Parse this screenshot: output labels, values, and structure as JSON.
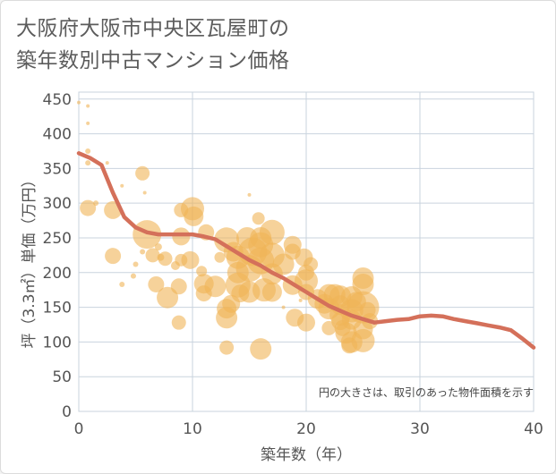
{
  "title_line1": "大阪府大阪市中央区瓦屋町の",
  "title_line2": "築年数別中古マンション価格",
  "chart_data": {
    "type": "scatter",
    "xlabel": "築年数（年）",
    "ylabel": "坪（3.3㎡）単価（万円）",
    "note": "円の大きさは、取引のあった物件面積を示す",
    "xlim": [
      0,
      40
    ],
    "ylim": [
      0,
      460
    ],
    "xticks": [
      0,
      10,
      20,
      30,
      40
    ],
    "yticks": [
      0,
      50,
      100,
      150,
      200,
      250,
      300,
      350,
      400,
      450
    ],
    "grid": true,
    "colors": {
      "bubble": "#f0b456",
      "line": "#d4705a"
    },
    "trend_line": {
      "x": [
        0,
        1,
        2,
        3,
        4,
        5,
        6,
        7,
        8,
        9,
        10,
        11,
        12,
        13,
        14,
        15,
        16,
        17,
        18,
        19,
        20,
        21,
        22,
        23,
        24,
        25,
        26,
        27,
        28,
        29,
        30,
        31,
        32,
        33,
        34,
        35,
        36,
        37,
        38,
        39,
        40
      ],
      "y": [
        372,
        365,
        355,
        315,
        280,
        265,
        258,
        255,
        255,
        255,
        255,
        252,
        248,
        238,
        228,
        218,
        210,
        200,
        192,
        182,
        172,
        162,
        152,
        145,
        138,
        133,
        128,
        130,
        132,
        133,
        137,
        138,
        137,
        133,
        130,
        127,
        124,
        121,
        117,
        105,
        92
      ]
    },
    "points": [
      {
        "x": 0,
        "y": 445,
        "s": 2
      },
      {
        "x": 0.8,
        "y": 440,
        "s": 2
      },
      {
        "x": 0.8,
        "y": 415,
        "s": 2
      },
      {
        "x": 0.8,
        "y": 375,
        "s": 3
      },
      {
        "x": 0.8,
        "y": 358,
        "s": 3
      },
      {
        "x": 0.8,
        "y": 293,
        "s": 9
      },
      {
        "x": 1.5,
        "y": 300,
        "s": 3
      },
      {
        "x": 2.5,
        "y": 358,
        "s": 2
      },
      {
        "x": 3,
        "y": 290,
        "s": 10
      },
      {
        "x": 3,
        "y": 224,
        "s": 9
      },
      {
        "x": 3.8,
        "y": 325,
        "s": 2
      },
      {
        "x": 3.8,
        "y": 183,
        "s": 3
      },
      {
        "x": 4.8,
        "y": 195,
        "s": 3
      },
      {
        "x": 5,
        "y": 212,
        "s": 3
      },
      {
        "x": 5.6,
        "y": 230,
        "s": 3
      },
      {
        "x": 5.6,
        "y": 343,
        "s": 8
      },
      {
        "x": 5.8,
        "y": 315,
        "s": 2
      },
      {
        "x": 6,
        "y": 255,
        "s": 16
      },
      {
        "x": 6.5,
        "y": 225,
        "s": 8
      },
      {
        "x": 6.8,
        "y": 183,
        "s": 9
      },
      {
        "x": 7,
        "y": 237,
        "s": 4
      },
      {
        "x": 7.2,
        "y": 222,
        "s": 4
      },
      {
        "x": 7.6,
        "y": 220,
        "s": 8
      },
      {
        "x": 7.8,
        "y": 164,
        "s": 12
      },
      {
        "x": 8.5,
        "y": 210,
        "s": 5
      },
      {
        "x": 8.8,
        "y": 180,
        "s": 9
      },
      {
        "x": 8.8,
        "y": 128,
        "s": 8
      },
      {
        "x": 9,
        "y": 218,
        "s": 7
      },
      {
        "x": 9,
        "y": 252,
        "s": 10
      },
      {
        "x": 9,
        "y": 290,
        "s": 8
      },
      {
        "x": 9.8,
        "y": 218,
        "s": 10
      },
      {
        "x": 10,
        "y": 292,
        "s": 13
      },
      {
        "x": 10.1,
        "y": 281,
        "s": 11
      },
      {
        "x": 10.8,
        "y": 202,
        "s": 6
      },
      {
        "x": 11,
        "y": 184,
        "s": 11
      },
      {
        "x": 11,
        "y": 170,
        "s": 9
      },
      {
        "x": 11.2,
        "y": 258,
        "s": 9
      },
      {
        "x": 12,
        "y": 180,
        "s": 12
      },
      {
        "x": 12.4,
        "y": 222,
        "s": 6
      },
      {
        "x": 13,
        "y": 247,
        "s": 14
      },
      {
        "x": 13,
        "y": 148,
        "s": 11
      },
      {
        "x": 13,
        "y": 135,
        "s": 12
      },
      {
        "x": 13,
        "y": 92,
        "s": 8
      },
      {
        "x": 13.4,
        "y": 155,
        "s": 10
      },
      {
        "x": 13.6,
        "y": 230,
        "s": 11
      },
      {
        "x": 14,
        "y": 222,
        "s": 13
      },
      {
        "x": 14,
        "y": 200,
        "s": 12
      },
      {
        "x": 14,
        "y": 182,
        "s": 14
      },
      {
        "x": 14.2,
        "y": 170,
        "s": 10
      },
      {
        "x": 14.8,
        "y": 250,
        "s": 12
      },
      {
        "x": 15,
        "y": 312,
        "s": 2
      },
      {
        "x": 15,
        "y": 206,
        "s": 15
      },
      {
        "x": 15,
        "y": 172,
        "s": 12
      },
      {
        "x": 15.3,
        "y": 230,
        "s": 16
      },
      {
        "x": 15.8,
        "y": 278,
        "s": 7
      },
      {
        "x": 16,
        "y": 250,
        "s": 12
      },
      {
        "x": 16,
        "y": 240,
        "s": 14
      },
      {
        "x": 16,
        "y": 217,
        "s": 15
      },
      {
        "x": 16,
        "y": 90,
        "s": 12
      },
      {
        "x": 16.3,
        "y": 175,
        "s": 13
      },
      {
        "x": 17,
        "y": 258,
        "s": 14
      },
      {
        "x": 17,
        "y": 225,
        "s": 14
      },
      {
        "x": 17,
        "y": 198,
        "s": 12
      },
      {
        "x": 17,
        "y": 172,
        "s": 11
      },
      {
        "x": 18,
        "y": 212,
        "s": 12
      },
      {
        "x": 18,
        "y": 150,
        "s": 2
      },
      {
        "x": 18.8,
        "y": 240,
        "s": 10
      },
      {
        "x": 18.8,
        "y": 230,
        "s": 9
      },
      {
        "x": 18.8,
        "y": 182,
        "s": 11
      },
      {
        "x": 19,
        "y": 135,
        "s": 10
      },
      {
        "x": 19.5,
        "y": 160,
        "s": 2
      },
      {
        "x": 19.8,
        "y": 222,
        "s": 10
      },
      {
        "x": 20,
        "y": 200,
        "s": 9
      },
      {
        "x": 20,
        "y": 188,
        "s": 13
      },
      {
        "x": 20,
        "y": 172,
        "s": 9
      },
      {
        "x": 20,
        "y": 128,
        "s": 10
      },
      {
        "x": 20.4,
        "y": 212,
        "s": 8
      },
      {
        "x": 21,
        "y": 162,
        "s": 11
      },
      {
        "x": 21.6,
        "y": 155,
        "s": 11
      },
      {
        "x": 22,
        "y": 168,
        "s": 12
      },
      {
        "x": 22,
        "y": 148,
        "s": 12
      },
      {
        "x": 22,
        "y": 120,
        "s": 8
      },
      {
        "x": 22.5,
        "y": 168,
        "s": 12
      },
      {
        "x": 23,
        "y": 166,
        "s": 12
      },
      {
        "x": 23,
        "y": 153,
        "s": 11
      },
      {
        "x": 23,
        "y": 139,
        "s": 12
      },
      {
        "x": 23,
        "y": 130,
        "s": 10
      },
      {
        "x": 23.2,
        "y": 120,
        "s": 9
      },
      {
        "x": 23.5,
        "y": 113,
        "s": 12
      },
      {
        "x": 23.8,
        "y": 95,
        "s": 9
      },
      {
        "x": 24,
        "y": 165,
        "s": 12
      },
      {
        "x": 24,
        "y": 145,
        "s": 13
      },
      {
        "x": 24,
        "y": 132,
        "s": 11
      },
      {
        "x": 24,
        "y": 100,
        "s": 12
      },
      {
        "x": 24.4,
        "y": 158,
        "s": 11
      },
      {
        "x": 25,
        "y": 192,
        "s": 12
      },
      {
        "x": 25,
        "y": 183,
        "s": 12
      },
      {
        "x": 25,
        "y": 150,
        "s": 18
      },
      {
        "x": 25,
        "y": 118,
        "s": 11
      },
      {
        "x": 25,
        "y": 102,
        "s": 13
      },
      {
        "x": 25.4,
        "y": 146,
        "s": 9
      },
      {
        "x": 25.6,
        "y": 130,
        "s": 9
      }
    ]
  }
}
